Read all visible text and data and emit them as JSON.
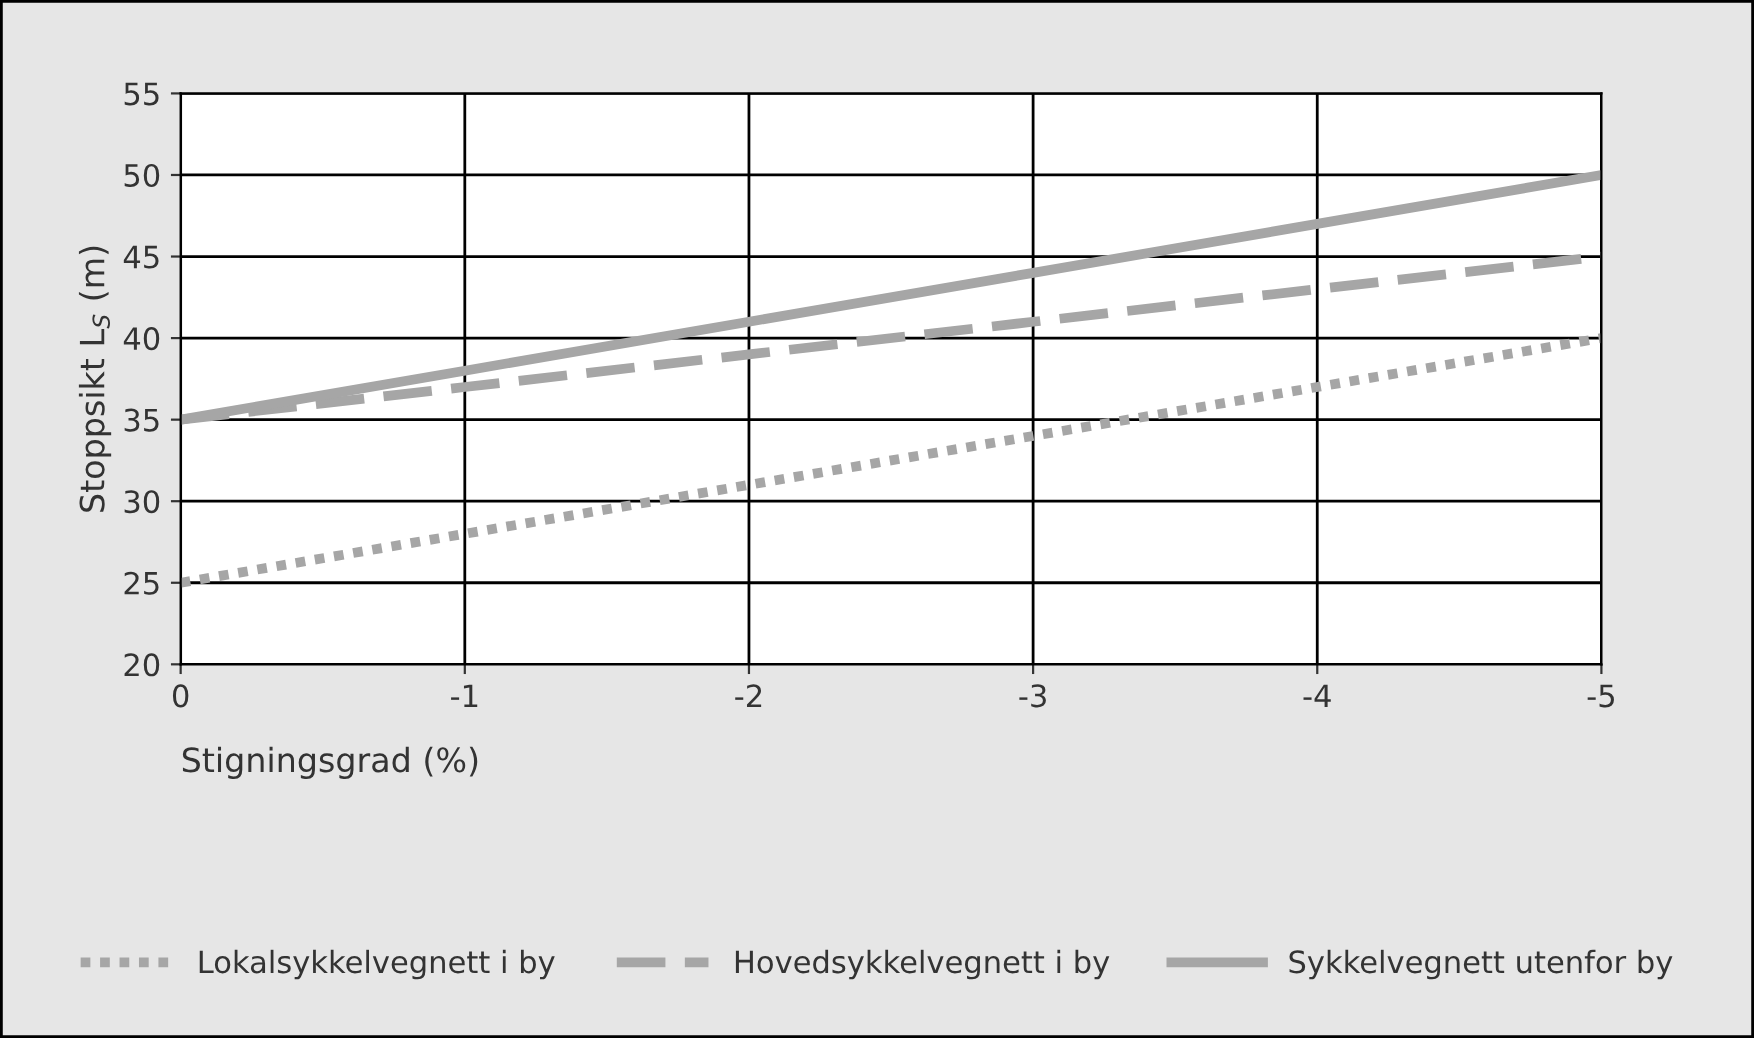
{
  "chart_data": {
    "type": "line",
    "xlabel": "Stigningsgrad (%)",
    "ylabel": "Stoppsikt L$_{S}$ (m)",
    "x": [
      0,
      -1,
      -2,
      -3,
      -4,
      -5
    ],
    "series": [
      {
        "name": "Lokalsykkelvegnett i by",
        "color": "#a6a6a6",
        "line_style": "dotted",
        "values": [
          25,
          28,
          31,
          34,
          37,
          40
        ]
      },
      {
        "name": "Hovedsykkelvegnett i by",
        "color": "#a6a6a6",
        "line_style": "dashed",
        "values": [
          35,
          37,
          39,
          41,
          43,
          45
        ]
      },
      {
        "name": "Sykkelvegnett utenfor by",
        "color": "#a6a6a6",
        "line_style": "solid",
        "values": [
          35,
          38,
          41,
          44,
          47,
          50
        ]
      }
    ],
    "xlim": [
      0,
      -5
    ],
    "xticks": [
      0,
      -1,
      -2,
      -3,
      -4,
      -5
    ],
    "ylim": [
      20,
      55
    ],
    "yticks": [
      20,
      25,
      30,
      35,
      40,
      45,
      50,
      55
    ],
    "grid": true,
    "legend": "bottom",
    "marker": "none"
  }
}
